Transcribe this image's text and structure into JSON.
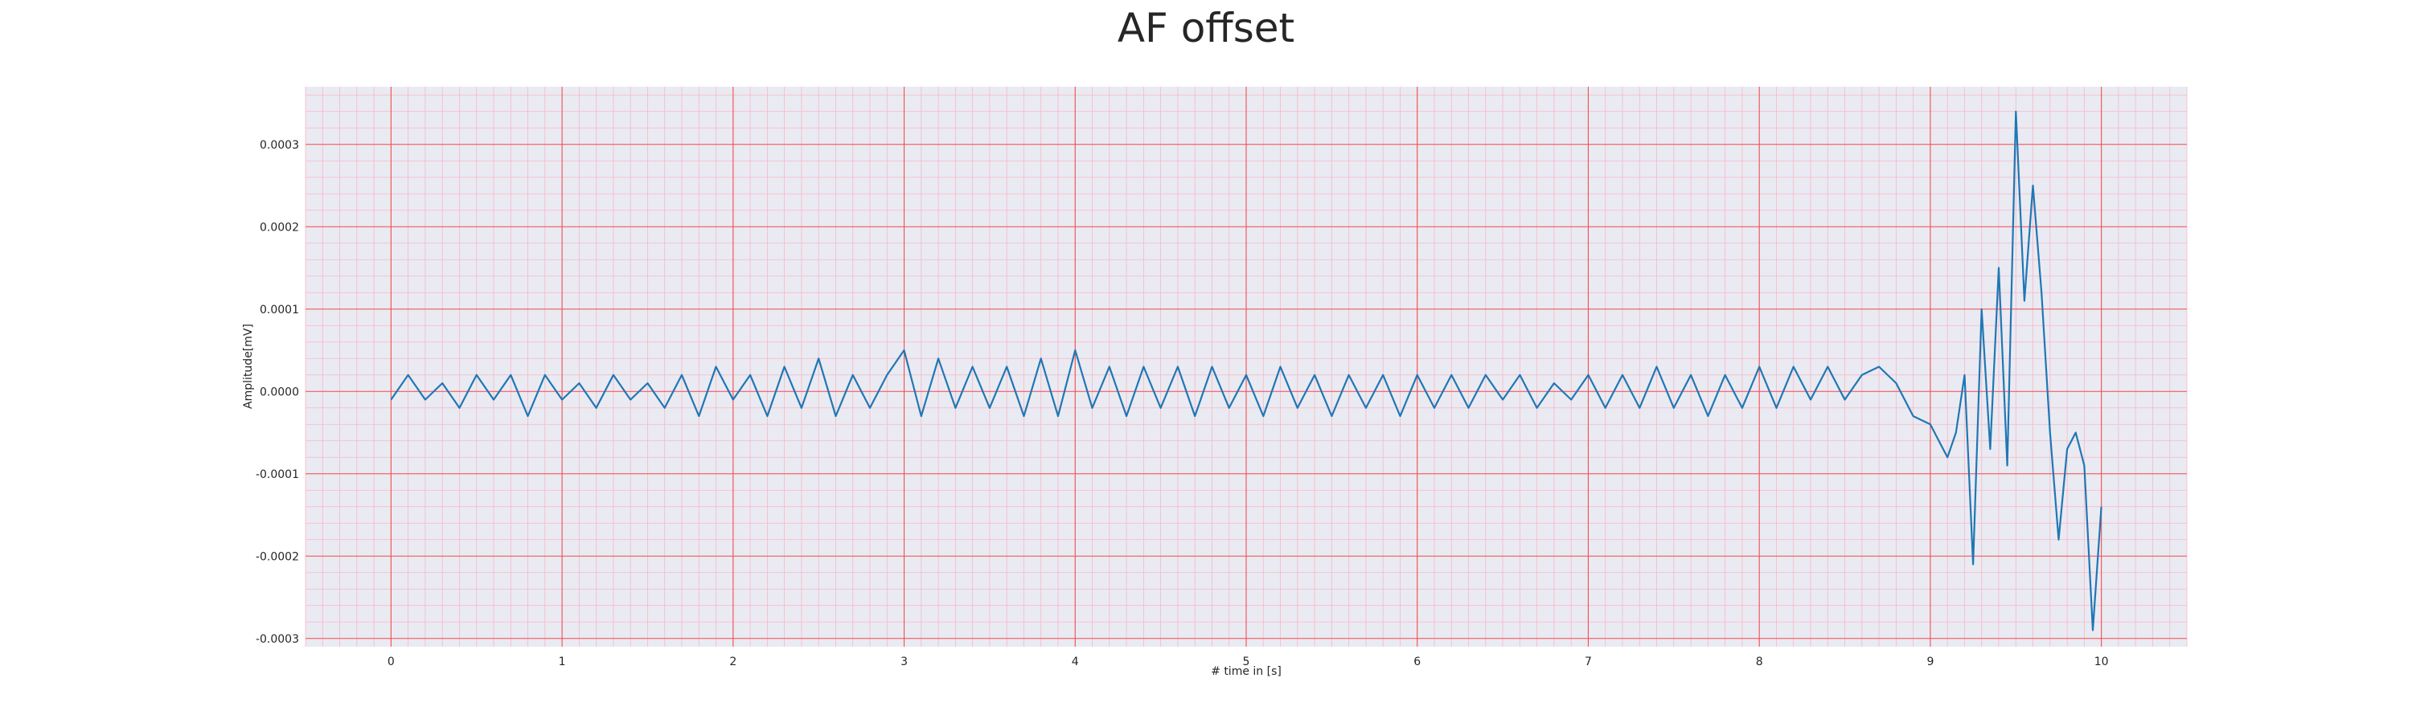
{
  "chart_data": {
    "type": "line",
    "title": "AF offset",
    "xlabel": "# time in [s]",
    "ylabel": "Amplitude[mV]",
    "xlim": [
      -0.5,
      10.5
    ],
    "ylim": [
      -0.00031,
      0.00037
    ],
    "x_ticks": [
      "0",
      "1",
      "2",
      "3",
      "4",
      "5",
      "6",
      "7",
      "8",
      "9",
      "10"
    ],
    "y_ticks": [
      "0.0003",
      "0.0002",
      "0.0001",
      "0.0000",
      "-0.0001",
      "-0.0002",
      "-0.0003"
    ],
    "grid": true,
    "minor_grid": true,
    "series": [
      {
        "color": "#1f77b4",
        "x": [
          0.0,
          0.1,
          0.2,
          0.3,
          0.4,
          0.5,
          0.6,
          0.7,
          0.8,
          0.9,
          1.0,
          1.1,
          1.2,
          1.3,
          1.4,
          1.5,
          1.6,
          1.7,
          1.8,
          1.9,
          2.0,
          2.1,
          2.2,
          2.3,
          2.4,
          2.5,
          2.6,
          2.7,
          2.8,
          2.9,
          3.0,
          3.1,
          3.2,
          3.3,
          3.4,
          3.5,
          3.6,
          3.7,
          3.8,
          3.9,
          4.0,
          4.1,
          4.2,
          4.3,
          4.4,
          4.5,
          4.6,
          4.7,
          4.8,
          4.9,
          5.0,
          5.1,
          5.2,
          5.3,
          5.4,
          5.5,
          5.6,
          5.7,
          5.8,
          5.9,
          6.0,
          6.1,
          6.2,
          6.3,
          6.4,
          6.5,
          6.6,
          6.7,
          6.8,
          6.9,
          7.0,
          7.1,
          7.2,
          7.3,
          7.4,
          7.5,
          7.6,
          7.7,
          7.8,
          7.9,
          8.0,
          8.1,
          8.2,
          8.3,
          8.4,
          8.5,
          8.6,
          8.7,
          8.8,
          8.9,
          9.0,
          9.05,
          9.1,
          9.15,
          9.2,
          9.25,
          9.3,
          9.35,
          9.4,
          9.45,
          9.5,
          9.55,
          9.6,
          9.65,
          9.7,
          9.75,
          9.8,
          9.85,
          9.9,
          9.95,
          10.0
        ],
        "y": [
          -1e-05,
          2e-05,
          -1e-05,
          1e-05,
          -2e-05,
          2e-05,
          -1e-05,
          2e-05,
          -3e-05,
          2e-05,
          -1e-05,
          1e-05,
          -2e-05,
          2e-05,
          -1e-05,
          1e-05,
          -2e-05,
          2e-05,
          -3e-05,
          3e-05,
          -1e-05,
          2e-05,
          -3e-05,
          3e-05,
          -2e-05,
          4e-05,
          -3e-05,
          2e-05,
          -2e-05,
          2e-05,
          5e-05,
          -3e-05,
          4e-05,
          -2e-05,
          3e-05,
          -2e-05,
          3e-05,
          -3e-05,
          4e-05,
          -3e-05,
          5e-05,
          -2e-05,
          3e-05,
          -3e-05,
          3e-05,
          -2e-05,
          3e-05,
          -3e-05,
          3e-05,
          -2e-05,
          2e-05,
          -3e-05,
          3e-05,
          -2e-05,
          2e-05,
          -3e-05,
          2e-05,
          -2e-05,
          2e-05,
          -3e-05,
          2e-05,
          -2e-05,
          2e-05,
          -2e-05,
          2e-05,
          -1e-05,
          2e-05,
          -2e-05,
          1e-05,
          -1e-05,
          2e-05,
          -2e-05,
          2e-05,
          -2e-05,
          3e-05,
          -2e-05,
          2e-05,
          -3e-05,
          2e-05,
          -2e-05,
          3e-05,
          -2e-05,
          3e-05,
          -1e-05,
          3e-05,
          -1e-05,
          2e-05,
          3e-05,
          1e-05,
          -3e-05,
          -4e-05,
          -6e-05,
          -8e-05,
          -5e-05,
          2e-05,
          -0.00021,
          0.0001,
          -7e-05,
          0.00015,
          -9e-05,
          0.00034,
          0.00011,
          0.00025,
          0.00012,
          -5e-05,
          -0.00018,
          -7e-05,
          -5e-05,
          -9e-05,
          -0.00029,
          -0.00014
        ]
      }
    ]
  }
}
